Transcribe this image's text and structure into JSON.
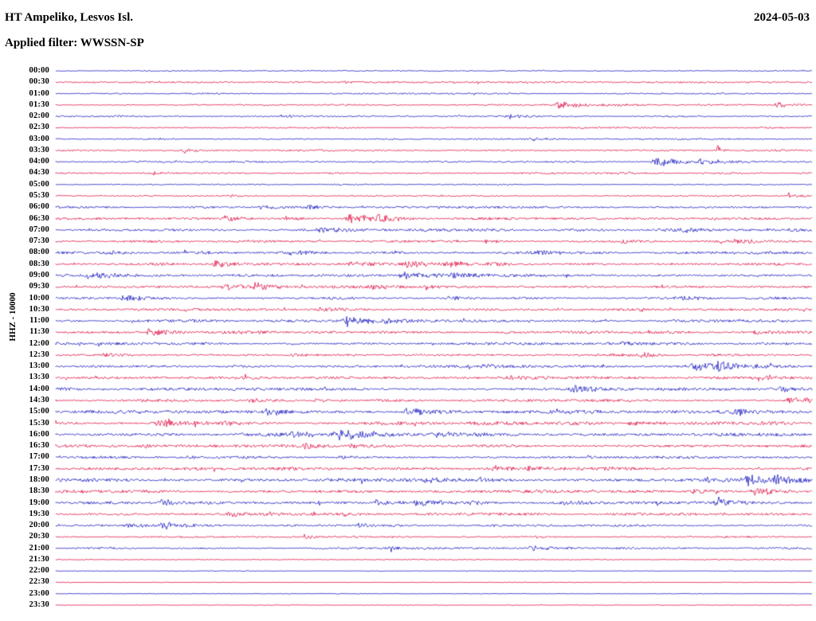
{
  "header": {
    "station": "HT Ampeliko, Lesvos Isl.",
    "date": "2024-05-03",
    "filter_line": "Applied filter: WWSSN-SP"
  },
  "axis": {
    "y_label": "HHZ - 10000"
  },
  "colors": {
    "b": "#2222c2",
    "r": "#e0194a",
    "background": "#ffffff",
    "text": "#000000"
  },
  "chart_data": {
    "type": "line",
    "subtype": "seismogram-helicorder",
    "title": "HT Ampeliko, Lesvos Isl.",
    "date": "2024-05-03",
    "filter": "WWSSN-SP",
    "channel": "HHZ",
    "scale_label": "HHZ - 10000",
    "row_duration_minutes": 30,
    "rows": [
      {
        "t": "00:00",
        "c": "b",
        "n": 0.7,
        "e": []
      },
      {
        "t": "00:30",
        "c": "r",
        "n": 0.9,
        "e": [
          [
            0.38,
            1.5,
            4
          ]
        ]
      },
      {
        "t": "01:00",
        "c": "b",
        "n": 0.8,
        "e": []
      },
      {
        "t": "01:30",
        "c": "r",
        "n": 0.9,
        "e": [
          [
            0.665,
            3.5,
            10
          ],
          [
            0.955,
            2.5,
            8
          ]
        ]
      },
      {
        "t": "02:00",
        "c": "b",
        "n": 0.9,
        "e": [
          [
            0.3,
            2.2,
            6
          ],
          [
            0.6,
            1.8,
            6
          ]
        ]
      },
      {
        "t": "02:30",
        "c": "r",
        "n": 0.8,
        "e": []
      },
      {
        "t": "03:00",
        "c": "b",
        "n": 0.9,
        "e": [
          [
            0.63,
            1.5,
            6
          ]
        ]
      },
      {
        "t": "03:30",
        "c": "r",
        "n": 1.0,
        "e": [
          [
            0.17,
            1.5,
            5
          ],
          [
            0.875,
            6,
            2
          ]
        ]
      },
      {
        "t": "04:00",
        "c": "b",
        "n": 1.0,
        "e": [
          [
            0.795,
            4.5,
            12
          ],
          [
            0.855,
            2,
            8
          ]
        ]
      },
      {
        "t": "04:30",
        "c": "r",
        "n": 0.9,
        "e": [
          [
            0.13,
            1.5,
            5
          ]
        ]
      },
      {
        "t": "05:00",
        "c": "b",
        "n": 0.7,
        "e": []
      },
      {
        "t": "05:30",
        "c": "r",
        "n": 0.8,
        "e": [
          [
            0.23,
            1.2,
            4
          ],
          [
            0.97,
            1.5,
            4
          ]
        ]
      },
      {
        "t": "06:00",
        "c": "b",
        "n": 1.2,
        "e": [
          [
            0.27,
            2,
            5
          ],
          [
            0.335,
            2,
            5
          ]
        ]
      },
      {
        "t": "06:30",
        "c": "r",
        "n": 1.4,
        "e": [
          [
            0.225,
            2.8,
            8
          ],
          [
            0.305,
            2,
            6
          ],
          [
            0.39,
            4.5,
            10
          ],
          [
            0.415,
            4,
            8
          ]
        ]
      },
      {
        "t": "07:00",
        "c": "b",
        "n": 1.5,
        "e": [
          [
            0.35,
            2.2,
            8
          ],
          [
            0.83,
            1.8,
            6
          ],
          [
            0.97,
            1.8,
            6
          ]
        ]
      },
      {
        "t": "07:30",
        "c": "r",
        "n": 1.4,
        "e": [
          [
            0.57,
            1.8,
            6
          ],
          [
            0.75,
            1.5,
            5
          ],
          [
            0.905,
            2.2,
            7
          ]
        ]
      },
      {
        "t": "08:00",
        "c": "b",
        "n": 1.5,
        "e": [
          [
            0.07,
            1.8,
            6
          ],
          [
            0.31,
            1.8,
            6
          ],
          [
            0.64,
            1.8,
            6
          ]
        ]
      },
      {
        "t": "08:30",
        "c": "r",
        "n": 1.6,
        "e": [
          [
            0.21,
            3.5,
            9
          ],
          [
            0.39,
            3.2,
            9
          ],
          [
            0.465,
            2.8,
            8
          ],
          [
            0.52,
            2.8,
            8
          ],
          [
            0.575,
            2.2,
            7
          ]
        ]
      },
      {
        "t": "09:00",
        "c": "b",
        "n": 1.6,
        "e": [
          [
            0.045,
            4,
            9
          ],
          [
            0.46,
            3.2,
            9
          ],
          [
            0.525,
            2.2,
            7
          ]
        ]
      },
      {
        "t": "09:30",
        "c": "r",
        "n": 1.5,
        "e": [
          [
            0.225,
            4,
            9
          ],
          [
            0.265,
            3.2,
            8
          ],
          [
            0.42,
            1.8,
            6
          ],
          [
            0.49,
            1.8,
            6
          ]
        ]
      },
      {
        "t": "10:00",
        "c": "b",
        "n": 1.5,
        "e": [
          [
            0.09,
            3.5,
            8
          ],
          [
            0.52,
            1.8,
            6
          ],
          [
            0.83,
            1.8,
            6
          ]
        ]
      },
      {
        "t": "10:30",
        "c": "r",
        "n": 1.4,
        "e": [
          [
            0.35,
            1.8,
            6
          ],
          [
            0.775,
            1.5,
            5
          ]
        ]
      },
      {
        "t": "11:00",
        "c": "b",
        "n": 1.5,
        "e": [
          [
            0.385,
            4.5,
            10
          ],
          [
            0.435,
            2.8,
            8
          ]
        ]
      },
      {
        "t": "11:30",
        "c": "r",
        "n": 1.5,
        "e": [
          [
            0.125,
            3.5,
            9
          ],
          [
            0.585,
            1.8,
            6
          ],
          [
            0.785,
            1.8,
            6
          ],
          [
            0.925,
            1.8,
            6
          ]
        ]
      },
      {
        "t": "12:00",
        "c": "b",
        "n": 1.4,
        "e": [
          [
            0.75,
            1.8,
            6
          ]
        ]
      },
      {
        "t": "12:30",
        "c": "r",
        "n": 1.4,
        "e": [
          [
            0.065,
            1.8,
            6
          ],
          [
            0.315,
            1.8,
            6
          ],
          [
            0.775,
            2.2,
            7
          ]
        ]
      },
      {
        "t": "13:00",
        "c": "b",
        "n": 1.5,
        "e": [
          [
            0.565,
            1.8,
            6
          ],
          [
            0.845,
            4.5,
            10
          ],
          [
            0.875,
            3.5,
            9
          ]
        ]
      },
      {
        "t": "13:30",
        "c": "r",
        "n": 1.4,
        "e": [
          [
            0.245,
            1.8,
            6
          ],
          [
            0.6,
            1.8,
            6
          ],
          [
            0.93,
            1.8,
            6
          ]
        ]
      },
      {
        "t": "14:00",
        "c": "b",
        "n": 1.5,
        "e": [
          [
            0.685,
            4,
            9
          ],
          [
            0.96,
            2.2,
            7
          ]
        ]
      },
      {
        "t": "14:30",
        "c": "r",
        "n": 1.5,
        "e": [
          [
            0.255,
            2.2,
            7
          ],
          [
            0.345,
            1.8,
            6
          ],
          [
            0.97,
            3.5,
            9
          ]
        ]
      },
      {
        "t": "15:00",
        "c": "b",
        "n": 1.9,
        "e": [
          [
            0.28,
            3,
            8
          ],
          [
            0.465,
            3.5,
            9
          ],
          [
            0.895,
            2.2,
            7
          ]
        ]
      },
      {
        "t": "15:30",
        "c": "r",
        "n": 1.9,
        "e": [
          [
            0.135,
            5,
            11
          ],
          [
            0.225,
            2.2,
            7
          ],
          [
            0.76,
            2.2,
            7
          ]
        ]
      },
      {
        "t": "16:00",
        "c": "b",
        "n": 1.9,
        "e": [
          [
            0.245,
            2.2,
            7
          ],
          [
            0.315,
            2.2,
            7
          ],
          [
            0.375,
            5.5,
            11
          ],
          [
            0.5,
            2.2,
            7
          ]
        ]
      },
      {
        "t": "16:30",
        "c": "r",
        "n": 1.5,
        "e": [
          [
            0.115,
            1.8,
            6
          ],
          [
            0.33,
            2.2,
            7
          ],
          [
            0.39,
            1.8,
            6
          ]
        ]
      },
      {
        "t": "17:00",
        "c": "b",
        "n": 1.4,
        "e": [
          [
            0.175,
            1.8,
            6
          ],
          [
            0.375,
            1.8,
            6
          ]
        ]
      },
      {
        "t": "17:30",
        "c": "r",
        "n": 1.5,
        "e": [
          [
            0.575,
            3,
            8
          ],
          [
            0.625,
            2.8,
            8
          ],
          [
            0.725,
            1.8,
            6
          ]
        ]
      },
      {
        "t": "18:00",
        "c": "b",
        "n": 1.9,
        "e": [
          [
            0.49,
            2.5,
            7
          ],
          [
            0.86,
            2.2,
            7
          ],
          [
            0.915,
            5,
            12
          ],
          [
            0.95,
            3.5,
            9
          ]
        ]
      },
      {
        "t": "18:30",
        "c": "r",
        "n": 1.6,
        "e": [
          [
            0.845,
            2.2,
            7
          ],
          [
            0.925,
            4,
            9
          ]
        ]
      },
      {
        "t": "19:00",
        "c": "b",
        "n": 1.6,
        "e": [
          [
            0.14,
            2.8,
            8
          ],
          [
            0.425,
            3.2,
            8
          ],
          [
            0.475,
            2.8,
            8
          ],
          [
            0.55,
            1.8,
            6
          ],
          [
            0.67,
            1.8,
            6
          ],
          [
            0.875,
            3.2,
            8
          ]
        ]
      },
      {
        "t": "19:30",
        "c": "r",
        "n": 1.4,
        "e": [
          [
            0.23,
            1.8,
            6
          ],
          [
            0.38,
            1.5,
            5
          ]
        ]
      },
      {
        "t": "20:00",
        "c": "b",
        "n": 1.2,
        "e": [
          [
            0.095,
            2.8,
            7
          ],
          [
            0.14,
            4,
            9
          ],
          [
            0.4,
            1.8,
            6
          ]
        ]
      },
      {
        "t": "20:30",
        "c": "r",
        "n": 1.0,
        "e": [
          [
            0.33,
            1.4,
            5
          ]
        ]
      },
      {
        "t": "21:00",
        "c": "b",
        "n": 1.0,
        "e": [
          [
            0.44,
            1.8,
            6
          ],
          [
            0.63,
            2.2,
            7
          ]
        ]
      },
      {
        "t": "21:30",
        "c": "r",
        "n": 0.5,
        "e": []
      },
      {
        "t": "22:00",
        "c": "b",
        "n": 0.35,
        "e": []
      },
      {
        "t": "22:30",
        "c": "r",
        "n": 0.35,
        "e": []
      },
      {
        "t": "23:00",
        "c": "b",
        "n": 0.35,
        "e": []
      },
      {
        "t": "23:30",
        "c": "r",
        "n": 0.35,
        "e": []
      }
    ]
  }
}
